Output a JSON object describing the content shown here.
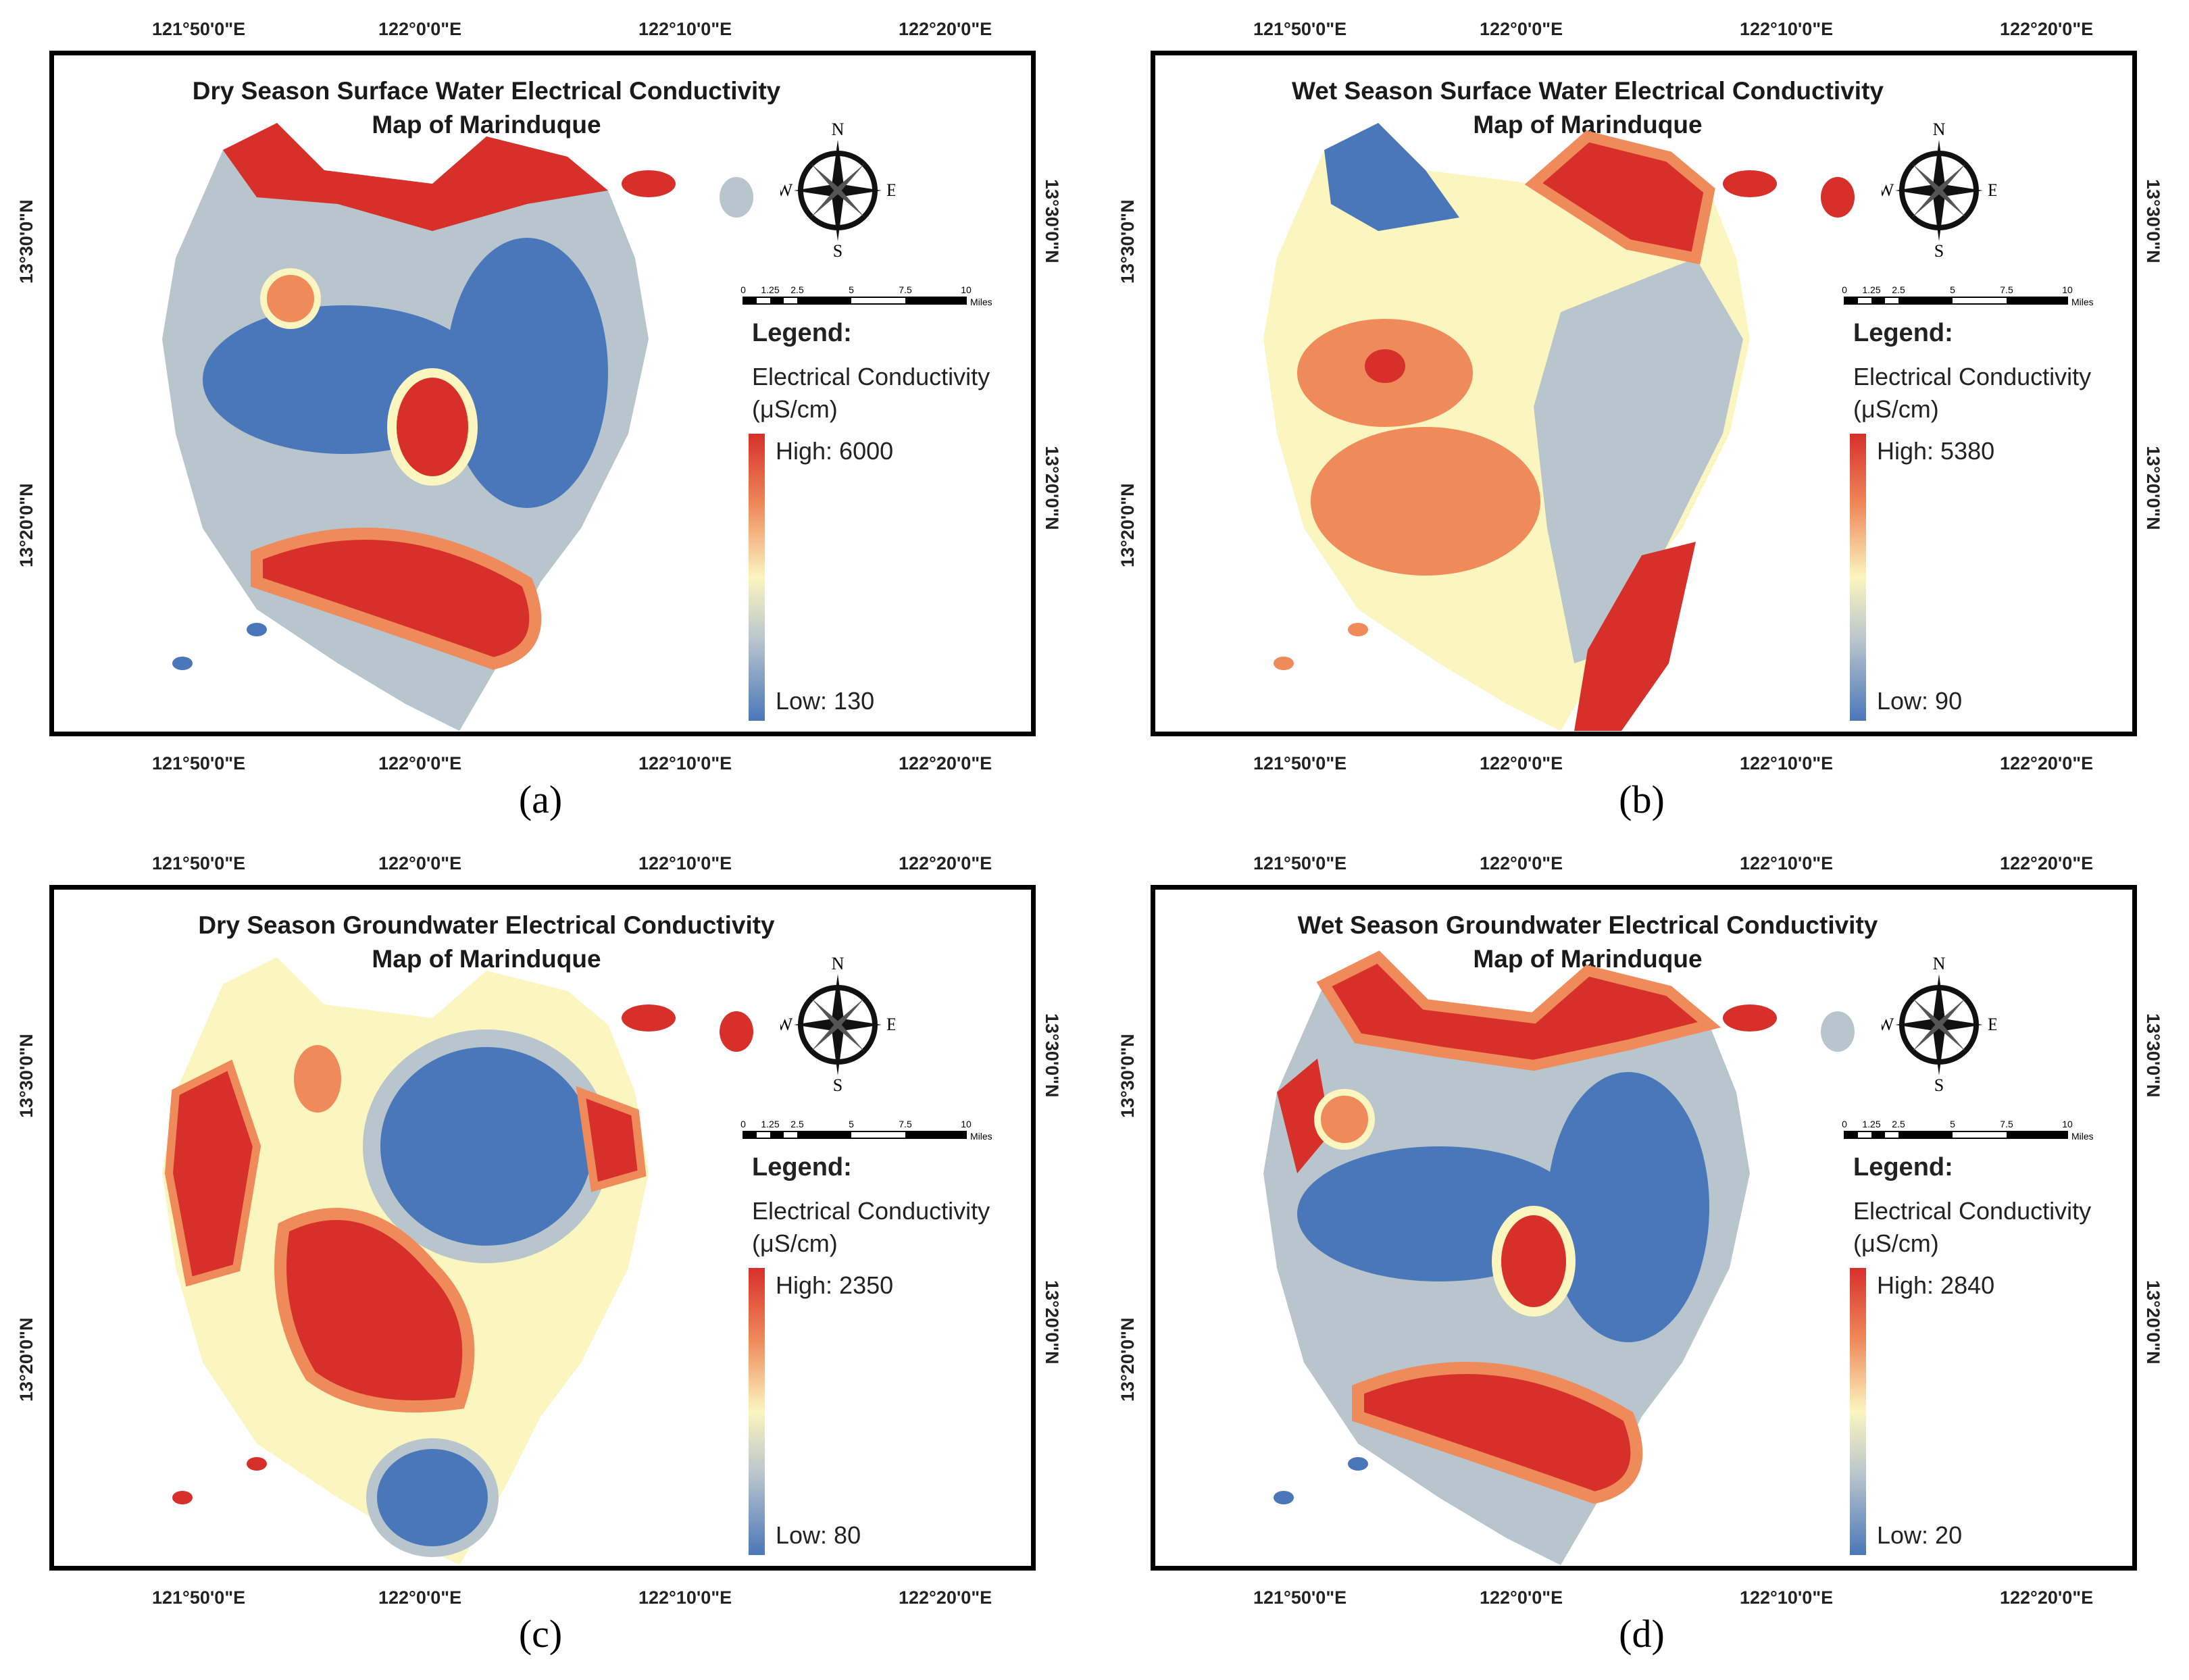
{
  "axes": {
    "x_labels": [
      "121°50'0\"E",
      "122°0'0\"E",
      "122°10'0\"E",
      "122°20'0\"E"
    ],
    "y_labels": [
      "13°30'0\"N",
      "13°20'0\"N"
    ]
  },
  "compass": {
    "n": "N",
    "s": "S",
    "e": "E",
    "w": "W"
  },
  "scale": {
    "ticks": [
      "0",
      "1.25",
      "2.5",
      "5",
      "7.5",
      "10"
    ],
    "unit": "Miles"
  },
  "legend": {
    "title": "Legend:",
    "subtitle_line1": "Electrical Conductivity",
    "subtitle_line2": "(μS/cm)"
  },
  "colors": {
    "high": "#d7302b",
    "mid_high": "#ef8a5a",
    "mid": "#fbf5bf",
    "mid_low": "#b9c5cc",
    "low": "#4a77b9"
  },
  "panels": [
    {
      "title_line1": "Dry Season Surface Water Electrical Conductivity",
      "title_line2": "Map of Marinduque",
      "high": "High: 6000",
      "low": "Low: 130",
      "caption": "(a)"
    },
    {
      "title_line1": "Wet Season Surface Water Electrical Conductivity",
      "title_line2": "Map of Marinduque",
      "high": "High: 5380",
      "low": "Low: 90",
      "caption": "(b)"
    },
    {
      "title_line1": "Dry Season Groundwater Electrical Conductivity",
      "title_line2": "Map of Marinduque",
      "high": "High: 2350",
      "low": "Low: 80",
      "caption": "(c)"
    },
    {
      "title_line1": "Wet Season Groundwater Electrical Conductivity",
      "title_line2": "Map of Marinduque",
      "high": "High: 2840",
      "low": "Low: 20",
      "caption": "(d)"
    }
  ]
}
